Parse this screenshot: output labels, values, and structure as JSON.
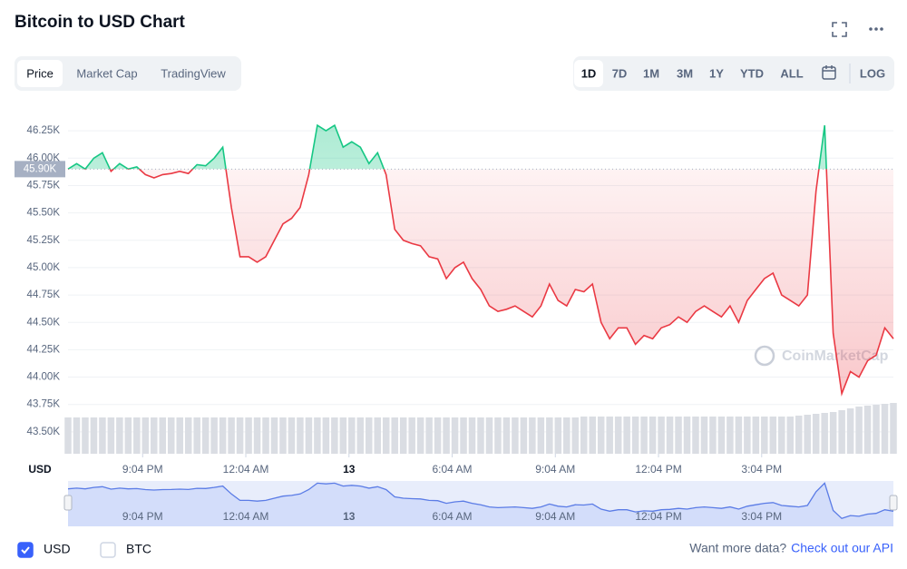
{
  "header": {
    "title": "Bitcoin to USD Chart"
  },
  "tabs": [
    "Price",
    "Market Cap",
    "TradingView"
  ],
  "active_tab": 0,
  "ranges": [
    "1D",
    "7D",
    "1M",
    "3M",
    "1Y",
    "YTD",
    "ALL"
  ],
  "active_range": 0,
  "log_button": "LOG",
  "chart_data": {
    "type": "line",
    "x": [
      0,
      0.25,
      0.5,
      0.75,
      1,
      1.25,
      1.5,
      1.75,
      2,
      2.25,
      2.5,
      2.75,
      3,
      3.25,
      3.5,
      3.75,
      4,
      4.25,
      4.5,
      4.75,
      5,
      5.25,
      5.5,
      5.75,
      6,
      6.25,
      6.5,
      6.75,
      7,
      7.25,
      7.5,
      7.75,
      8,
      8.25,
      8.5,
      8.75,
      9,
      9.25,
      9.5,
      9.75,
      10,
      10.25,
      10.5,
      10.75,
      11,
      11.25,
      11.5,
      11.75,
      12,
      12.25,
      12.5,
      12.75,
      13,
      13.25,
      13.5,
      13.75,
      14,
      14.25,
      14.5,
      14.75,
      15,
      15.25,
      15.5,
      15.75,
      16,
      16.25,
      16.5,
      16.75,
      17,
      17.25,
      17.5,
      17.75,
      18,
      18.25,
      18.5,
      18.75,
      19,
      19.25,
      19.5,
      19.75,
      20,
      20.25,
      20.5,
      20.75,
      21,
      21.25,
      21.5,
      21.75,
      22,
      22.25,
      22.5,
      22.75,
      23,
      23.25,
      23.5,
      23.75,
      24
    ],
    "values": [
      45900,
      45950,
      45900,
      46000,
      46050,
      45880,
      45950,
      45900,
      45920,
      45850,
      45820,
      45850,
      45860,
      45880,
      45860,
      45940,
      45930,
      46000,
      46100,
      45550,
      45100,
      45100,
      45050,
      45100,
      45250,
      45400,
      45450,
      45550,
      45850,
      46300,
      46250,
      46300,
      46100,
      46150,
      46100,
      45950,
      46050,
      45850,
      45350,
      45250,
      45220,
      45200,
      45100,
      45080,
      44900,
      45000,
      45050,
      44900,
      44800,
      44650,
      44600,
      44620,
      44650,
      44600,
      44550,
      44650,
      44850,
      44700,
      44650,
      44800,
      44780,
      44850,
      44500,
      44350,
      44450,
      44450,
      44300,
      44380,
      44350,
      44450,
      44480,
      44550,
      44500,
      44600,
      44650,
      44600,
      44550,
      44650,
      44500,
      44700,
      44800,
      44900,
      44950,
      44750,
      44700,
      44650,
      44750,
      45700,
      46300,
      44400,
      43850,
      44050,
      44000,
      44150,
      44200,
      44450,
      44350
    ],
    "volume": [
      40,
      40,
      40,
      40,
      40,
      40,
      40,
      40,
      40,
      40,
      40,
      40,
      40,
      40,
      40,
      40,
      40,
      40,
      40,
      40,
      40,
      40,
      40,
      40,
      40,
      40,
      40,
      40,
      40,
      40,
      40,
      40,
      40,
      40,
      40,
      40,
      40,
      40,
      40,
      40,
      40,
      40,
      40,
      40,
      40,
      40,
      40,
      40,
      40,
      40,
      40,
      40,
      40,
      40,
      40,
      40,
      40,
      40,
      40,
      40,
      41,
      41,
      41,
      41,
      41,
      41,
      41,
      41,
      41,
      41,
      41,
      41,
      41,
      41,
      41,
      41,
      41,
      41,
      41,
      41,
      41,
      41,
      41,
      41,
      41,
      42,
      43,
      44,
      45,
      46,
      48,
      50,
      52,
      53,
      54,
      55,
      56
    ],
    "volume_lim": [
      0,
      60
    ],
    "color_up": "#16c784",
    "color_down": "#ea3943",
    "nav_color": "#5b7ce6",
    "baseline": 45900,
    "baseline_label": "45.90K",
    "xlim": [
      0,
      24
    ],
    "xticks": [
      {
        "value": 2.17,
        "label": "9:04 PM"
      },
      {
        "value": 5.17,
        "label": "12:04 AM"
      },
      {
        "value": 8.17,
        "label": "13"
      },
      {
        "value": 11.17,
        "label": "6:04 AM"
      },
      {
        "value": 14.17,
        "label": "9:04 AM"
      },
      {
        "value": 17.17,
        "label": "12:04 PM"
      },
      {
        "value": 20.17,
        "label": "3:04 PM"
      }
    ],
    "ylim": [
      43300,
      46450
    ],
    "yticks": [
      {
        "value": 43500,
        "label": "43.50K"
      },
      {
        "value": 43750,
        "label": "43.75K"
      },
      {
        "value": 44000,
        "label": "44.00K"
      },
      {
        "value": 44250,
        "label": "44.25K"
      },
      {
        "value": 44500,
        "label": "44.50K"
      },
      {
        "value": 44750,
        "label": "44.75K"
      },
      {
        "value": 45000,
        "label": "45.00K"
      },
      {
        "value": 45250,
        "label": "45.25K"
      },
      {
        "value": 45500,
        "label": "45.50K"
      },
      {
        "value": 45750,
        "label": "45.75K"
      },
      {
        "value": 46000,
        "label": "46.00K"
      },
      {
        "value": 46250,
        "label": "46.25K"
      }
    ],
    "y_axis_label": "USD",
    "grid": true,
    "watermark": "CoinMarketCap"
  },
  "footer": {
    "currencies": [
      {
        "label": "USD",
        "checked": true
      },
      {
        "label": "BTC",
        "checked": false
      }
    ],
    "prompt": "Want more data?",
    "link": "Check out our API"
  }
}
